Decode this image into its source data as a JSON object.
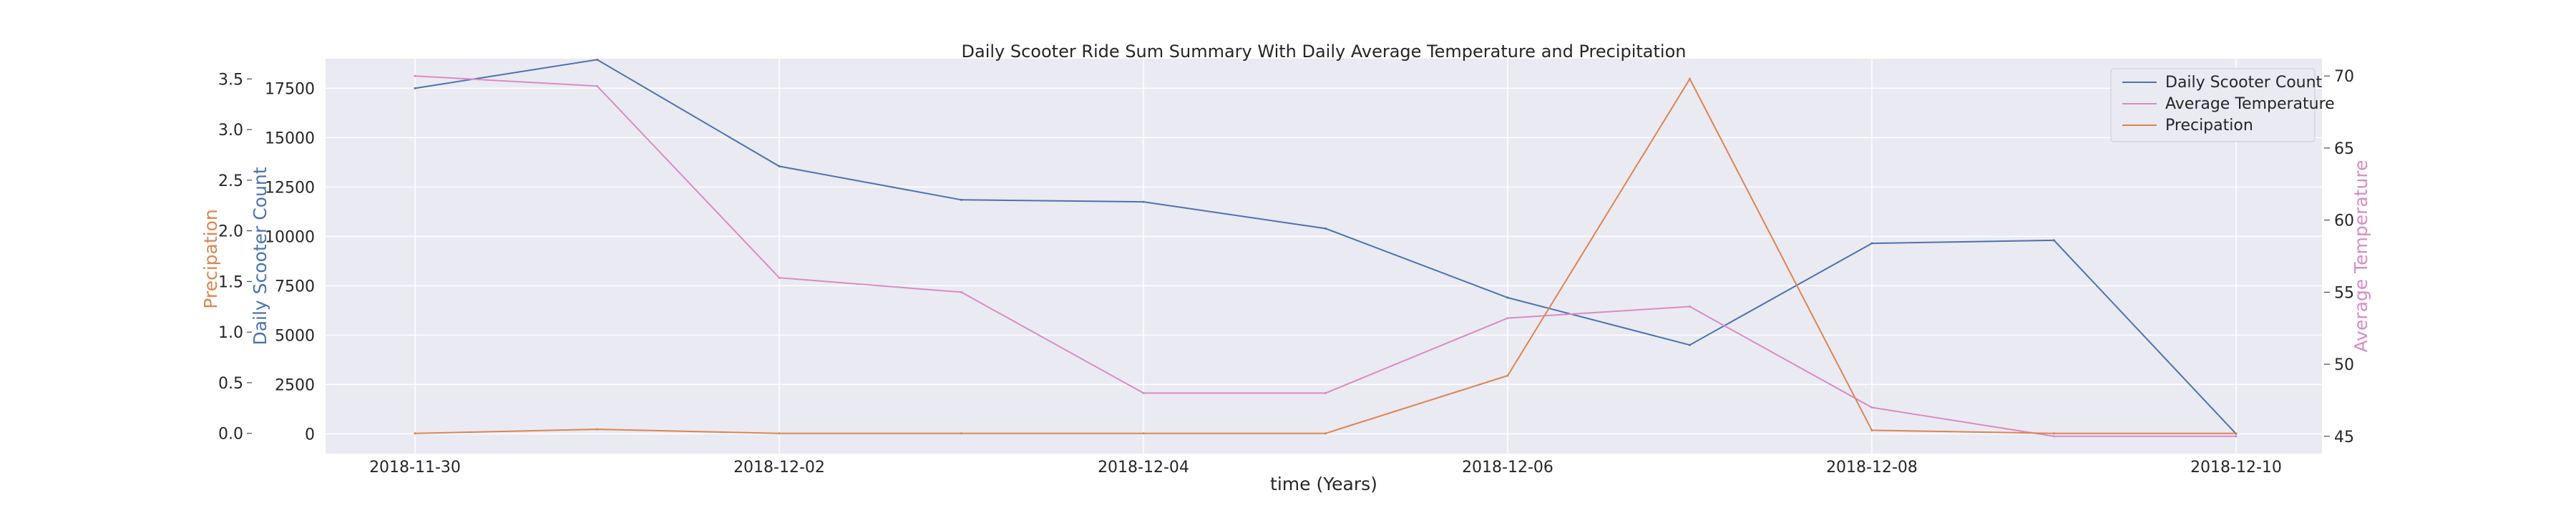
{
  "chart_data": {
    "type": "line",
    "title": "Daily Scooter Ride Sum Summary With Daily Average Temperature and Precipitation",
    "xlabel": "time (Years)",
    "x": [
      "2018-11-30",
      "2018-12-01",
      "2018-12-02",
      "2018-12-03",
      "2018-12-04",
      "2018-12-05",
      "2018-12-06",
      "2018-12-07",
      "2018-12-08",
      "2018-12-09",
      "2018-12-10"
    ],
    "x_ticks": [
      "2018-11-30",
      "2018-12-02",
      "2018-12-04",
      "2018-12-06",
      "2018-12-08",
      "2018-12-10"
    ],
    "axes": {
      "count": {
        "label": "Daily Scooter Count",
        "range": [
          -1000,
          19000
        ],
        "ticks": [
          0,
          2500,
          5000,
          7500,
          10000,
          12500,
          15000,
          17500
        ],
        "tick_labels": [
          "0",
          "2500",
          "5000",
          "7500",
          "10000",
          "12500",
          "15000",
          "17500"
        ],
        "color": "#4c72b0"
      },
      "precip": {
        "label": "Precipation",
        "range": [
          -0.2,
          3.7
        ],
        "ticks": [
          0.0,
          0.5,
          1.0,
          1.5,
          2.0,
          2.5,
          3.0,
          3.5
        ],
        "tick_labels": [
          "0.0",
          "0.5",
          "1.0",
          "1.5",
          "2.0",
          "2.5",
          "3.0",
          "3.5"
        ],
        "color": "#dd8452"
      },
      "temp": {
        "label": "Average Temperature",
        "range": [
          43.8,
          71.2
        ],
        "ticks": [
          45,
          50,
          55,
          60,
          65,
          70
        ],
        "tick_labels": [
          "45",
          "50",
          "55",
          "60",
          "65",
          "70"
        ],
        "color": "#da8bc3"
      }
    },
    "series": [
      {
        "name": "Daily Scooter Count",
        "axis": "count",
        "color": "#4c72b0",
        "values": [
          17500,
          18950,
          13550,
          11850,
          11750,
          10400,
          6900,
          4500,
          9650,
          9800,
          0
        ]
      },
      {
        "name": "Average Temperature",
        "axis": "temp",
        "color": "#da8bc3",
        "values": [
          70,
          69.3,
          56,
          55,
          48,
          48,
          53.2,
          54,
          47,
          45,
          45
        ]
      },
      {
        "name": "Precipation",
        "axis": "precip",
        "color": "#dd8452",
        "values": [
          0.0,
          0.04,
          0.0,
          0.0,
          0.0,
          0.0,
          0.57,
          3.5,
          0.03,
          0.0,
          0.0
        ]
      }
    ],
    "legend": {
      "position": "top-right"
    },
    "grid": true
  }
}
